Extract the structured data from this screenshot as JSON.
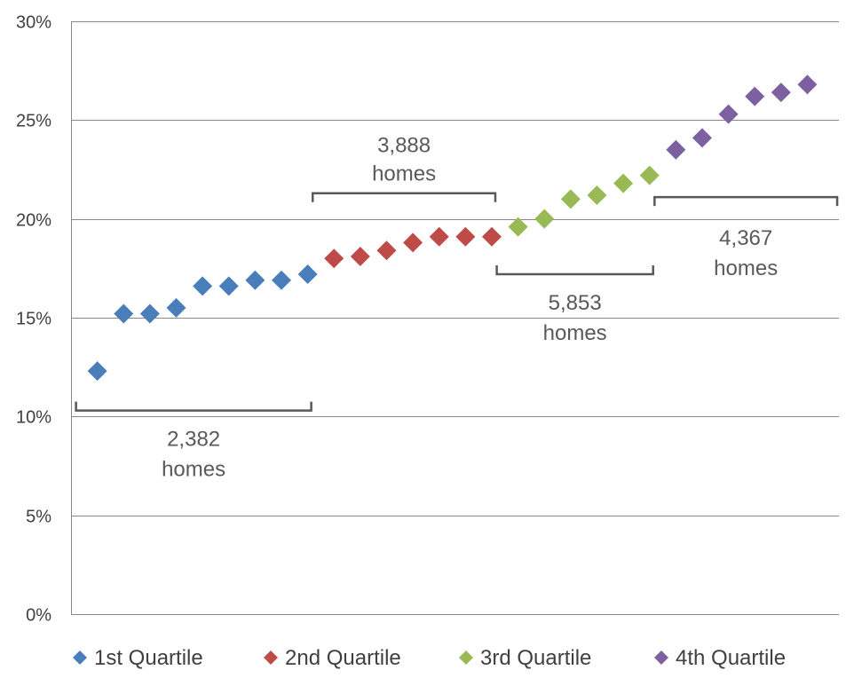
{
  "chart_data": {
    "type": "scatter",
    "title": "",
    "xlabel": "",
    "ylabel": "",
    "ylim": [
      0,
      30
    ],
    "yticks": [
      "0%",
      "5%",
      "10%",
      "15%",
      "20%",
      "25%",
      "30%"
    ],
    "ytick_values": [
      0,
      5,
      10,
      15,
      20,
      25,
      30
    ],
    "grid": "horizontal",
    "legend_position": "bottom",
    "marker": "diamond",
    "series": [
      {
        "name": "1st Quartile",
        "color": "#4a7ebb",
        "x": [
          1,
          2,
          3,
          4,
          5,
          6,
          7,
          8,
          9
        ],
        "values": [
          12.3,
          15.2,
          15.2,
          15.5,
          16.6,
          16.6,
          16.9,
          16.9,
          17.2
        ]
      },
      {
        "name": "2nd Quartile",
        "color": "#be4b48",
        "x": [
          10,
          11,
          12,
          13,
          14,
          15,
          16
        ],
        "values": [
          18.0,
          18.1,
          18.4,
          18.8,
          19.1,
          19.1,
          19.1
        ]
      },
      {
        "name": "3rd Quartile",
        "color": "#98b954",
        "x": [
          17,
          18,
          19,
          20,
          21,
          22
        ],
        "values": [
          19.6,
          20.0,
          21.0,
          21.2,
          21.8,
          22.2
        ]
      },
      {
        "name": "4th Quartile",
        "color": "#7d60a0",
        "x": [
          23,
          24,
          25,
          26,
          27,
          28
        ],
        "values": [
          23.5,
          24.1,
          25.3,
          26.2,
          26.4,
          26.8
        ]
      }
    ],
    "annotations": [
      {
        "line1": "2,382",
        "line2": "homes",
        "x_start": 1,
        "x_end": 9,
        "y": 10.3,
        "bracket": "up"
      },
      {
        "line1": "3,888",
        "line2": "homes",
        "x_start": 10,
        "x_end": 16,
        "y": 21.3,
        "bracket": "down"
      },
      {
        "line1": "5,853",
        "line2": "homes",
        "x_start": 17,
        "x_end": 22,
        "y": 17.2,
        "bracket": "up"
      },
      {
        "line1": "4,367",
        "line2": "homes",
        "x_start": 23,
        "x_end": 29,
        "y": 21.1,
        "bracket": "down"
      }
    ],
    "colors": {
      "grid": "#878787",
      "axis": "#878787",
      "bracket": "#595959"
    }
  }
}
